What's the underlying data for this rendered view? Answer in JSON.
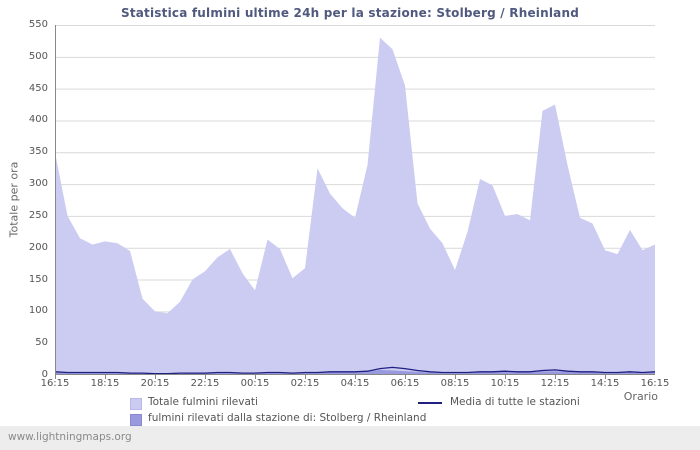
{
  "watermark": "www.lightningmaps.org",
  "chart_data": {
    "type": "area",
    "title": "Statistica fulmini ultime 24h per la stazione: Stolberg / Rheinland",
    "xlabel": "Orario",
    "ylabel": "Totale per ora",
    "ylim": [
      0,
      550
    ],
    "grid": "horizontal",
    "legend_position": "bottom",
    "y_ticks": [
      0,
      50,
      100,
      150,
      200,
      250,
      300,
      350,
      400,
      450,
      500,
      550
    ],
    "x_ticks": [
      "16:15",
      "18:15",
      "20:15",
      "22:15",
      "00:15",
      "02:15",
      "04:15",
      "06:15",
      "08:15",
      "10:15",
      "12:15",
      "14:15",
      "16:15"
    ],
    "x": [
      "16:15",
      "16:45",
      "17:15",
      "17:45",
      "18:15",
      "18:45",
      "19:15",
      "19:45",
      "20:15",
      "20:45",
      "21:15",
      "21:45",
      "22:15",
      "22:45",
      "23:15",
      "23:45",
      "00:15",
      "00:45",
      "01:15",
      "01:45",
      "02:15",
      "02:45",
      "03:15",
      "03:45",
      "04:15",
      "04:45",
      "05:15",
      "05:45",
      "06:15",
      "06:45",
      "07:15",
      "07:45",
      "08:15",
      "08:45",
      "09:15",
      "09:45",
      "10:15",
      "10:45",
      "11:15",
      "11:45",
      "12:15",
      "12:45",
      "13:15",
      "13:45",
      "14:15",
      "14:45",
      "15:15",
      "15:45",
      "16:15"
    ],
    "series": [
      {
        "name": "Totale fulmini rilevati",
        "type": "area",
        "color": "#ccccf2",
        "values": [
          350,
          250,
          215,
          205,
          210,
          207,
          195,
          120,
          100,
          97,
          115,
          150,
          163,
          185,
          198,
          160,
          133,
          213,
          198,
          152,
          168,
          325,
          285,
          262,
          247,
          330,
          530,
          512,
          455,
          270,
          230,
          207,
          165,
          225,
          308,
          298,
          250,
          253,
          243,
          415,
          425,
          330,
          247,
          238,
          196,
          190,
          228,
          196,
          205
        ]
      },
      {
        "name": "fulmini rilevati dalla stazione di: Stolberg / Rheinland",
        "type": "area",
        "color": "#9999e0",
        "values": [
          4,
          3,
          3,
          3,
          3,
          3,
          3,
          2,
          2,
          2,
          2,
          3,
          3,
          3,
          3,
          2,
          2,
          3,
          3,
          3,
          3,
          4,
          5,
          4,
          4,
          5,
          8,
          7,
          6,
          5,
          4,
          3,
          3,
          3,
          4,
          5,
          5,
          4,
          4,
          6,
          6,
          5,
          4,
          4,
          3,
          3,
          4,
          3,
          4
        ]
      },
      {
        "name": "Media di tutte le stazioni",
        "type": "line",
        "color": "#202080",
        "values": [
          5,
          4,
          4,
          4,
          4,
          4,
          3,
          3,
          2,
          2,
          3,
          3,
          3,
          4,
          4,
          3,
          3,
          4,
          4,
          3,
          4,
          4,
          5,
          5,
          5,
          6,
          10,
          12,
          10,
          7,
          5,
          4,
          4,
          4,
          5,
          5,
          6,
          5,
          5,
          7,
          8,
          6,
          5,
          5,
          4,
          4,
          5,
          4,
          5
        ]
      }
    ]
  }
}
